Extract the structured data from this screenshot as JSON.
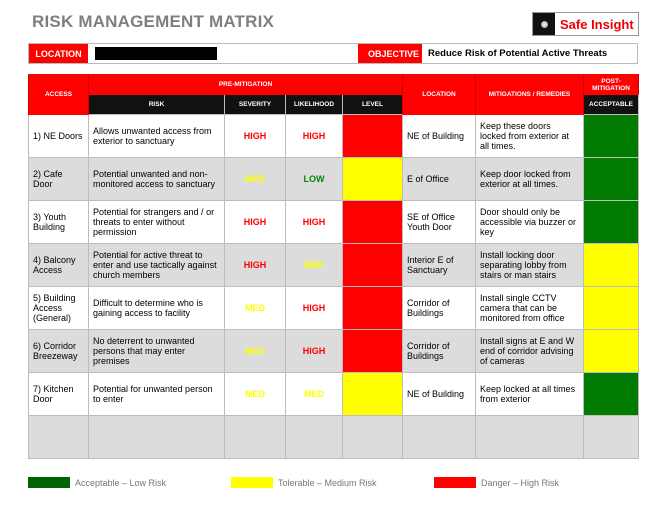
{
  "title": "RISK MANAGEMENT MATRIX",
  "logo": {
    "text": "Safe Insight"
  },
  "info": {
    "location_label": "LOCATION",
    "location_value": "",
    "objective_label": "OBJECTIVE",
    "objective_value": "Reduce Risk of Potential Active Threats"
  },
  "headers": {
    "access": "ACCESS",
    "pre": "PRE-MITIGATION",
    "risk": "RISK",
    "severity": "SEVERITY",
    "likelihood": "LIKELIHOOD",
    "level": "LEVEL",
    "location": "LOCATION",
    "mitigations": "MITIGATIONS / REMEDIES",
    "post": "POST-MITIGATION",
    "acceptable": "ACCEPTABLE"
  },
  "colors": {
    "red": "#ff0000",
    "yellow": "#ffff00",
    "green": "#007a00"
  },
  "rows": [
    {
      "access": "1) NE Doors",
      "risk": "Allows unwanted access from exterior to sanctuary",
      "severity": "HIGH",
      "likelihood": "HIGH",
      "level": "red",
      "location": "NE of Building",
      "mitigation": "Keep these doors locked from exterior at all times.",
      "acceptable": "green"
    },
    {
      "access": "2) Cafe Door",
      "risk": "Potential unwanted and non-monitored access to sanctuary",
      "severity": "MED",
      "likelihood": "LOW",
      "level": "yellow",
      "location": "E of Office",
      "mitigation": "Keep door locked from exterior at all times.",
      "acceptable": "green"
    },
    {
      "access": "3) Youth Building",
      "risk": "Potential for strangers and / or threats to enter without permission",
      "severity": "HIGH",
      "likelihood": "HIGH",
      "level": "red",
      "location": "SE of Office Youth Door",
      "mitigation": "Door should only be accessible via buzzer or key",
      "acceptable": "green"
    },
    {
      "access": "4) Balcony Access",
      "risk": "Potential for active threat to enter and use tactically against church members",
      "severity": "HIGH",
      "likelihood": "MED",
      "level": "red",
      "location": "Interior E of Sanctuary",
      "mitigation": "Install locking door separating lobby from stairs or man stairs",
      "acceptable": "yellow"
    },
    {
      "access": "5) Building Access (General)",
      "risk": "Difficult to determine who is gaining access to facility",
      "severity": "MED",
      "likelihood": "HIGH",
      "level": "red",
      "location": "Corridor of Buildings",
      "mitigation": "Install single CCTV camera that can be monitored from office",
      "acceptable": "yellow"
    },
    {
      "access": "6) Corridor Breezeway",
      "risk": "No deterrent to unwanted persons that may enter premises",
      "severity": "MED",
      "likelihood": "HIGH",
      "level": "red",
      "location": "Corridor of Buildings",
      "mitigation": "Install signs at E and W end of corridor advising of cameras",
      "acceptable": "yellow"
    },
    {
      "access": "7) Kitchen Door",
      "risk": "Potential for unwanted person to enter",
      "severity": "MED",
      "likelihood": "MED",
      "level": "yellow",
      "location": "NE of Building",
      "mitigation": "Keep locked at all times from exterior",
      "acceptable": "green"
    }
  ],
  "legend": [
    {
      "label": "Acceptable – Low Risk",
      "color": "#006400"
    },
    {
      "label": "Tolerable – Medium Risk",
      "color": "#ffff00"
    },
    {
      "label": "Danger – High Risk",
      "color": "#ff0000"
    }
  ]
}
